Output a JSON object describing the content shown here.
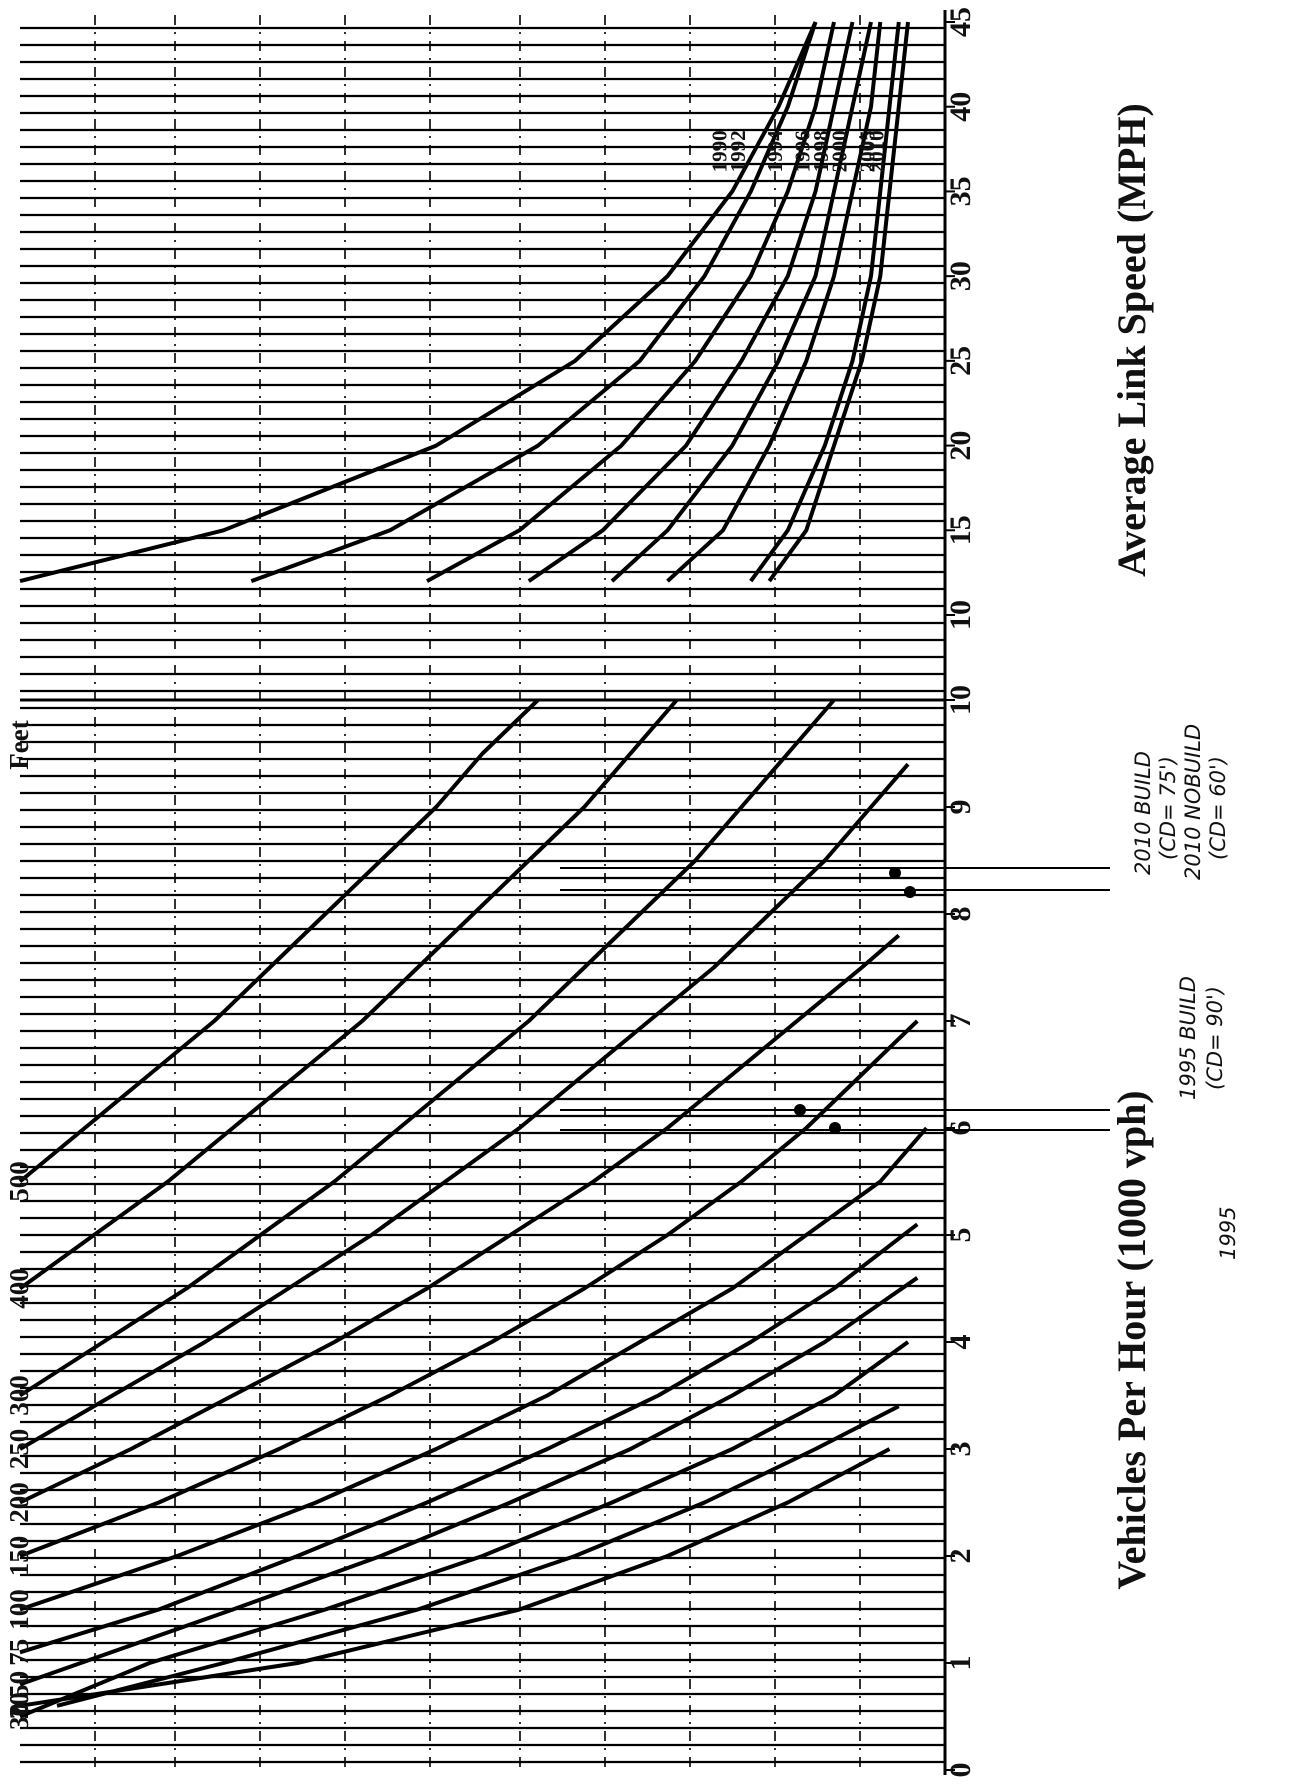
{
  "chart_data": [
    {
      "type": "line",
      "title": "",
      "xlabel": "Vehicles Per Hour (1000 vph)",
      "ylabel": "",
      "xlim": [
        0,
        10
      ],
      "x_ticks": [
        "0",
        "1",
        "2",
        "3",
        "4",
        "5",
        "6",
        "7",
        "8",
        "9",
        "10"
      ],
      "series_label_header": "Feet",
      "series": [
        {
          "name": "10",
          "x": [
            0.6,
            1.0,
            1.5,
            2.0,
            2.5,
            3.0
          ],
          "y": [
            1.0,
            0.7,
            0.46,
            0.3,
            0.17,
            0.06
          ]
        },
        {
          "name": "20",
          "x": [
            0.6,
            1.0,
            1.5,
            2.0,
            2.5,
            3.0,
            3.4
          ],
          "y": [
            0.96,
            0.78,
            0.57,
            0.4,
            0.26,
            0.14,
            0.05
          ]
        },
        {
          "name": "30",
          "x": [
            0.5,
            1.0,
            1.5,
            2.0,
            2.5,
            3.0,
            3.5,
            4.0
          ],
          "y": [
            1.0,
            0.86,
            0.67,
            0.5,
            0.36,
            0.23,
            0.12,
            0.04
          ]
        },
        {
          "name": "50",
          "x": [
            0.8,
            1.5,
            2.0,
            2.5,
            3.0,
            3.5,
            4.0,
            4.6
          ],
          "y": [
            1.0,
            0.77,
            0.61,
            0.47,
            0.34,
            0.23,
            0.13,
            0.03
          ]
        },
        {
          "name": "75",
          "x": [
            1.1,
            1.5,
            2.0,
            2.5,
            3.0,
            3.5,
            4.0,
            4.5,
            5.1
          ],
          "y": [
            1.0,
            0.85,
            0.7,
            0.56,
            0.43,
            0.31,
            0.21,
            0.12,
            0.03
          ]
        },
        {
          "name": "100",
          "x": [
            1.5,
            2.0,
            2.5,
            3.0,
            3.5,
            4.0,
            4.5,
            5.0,
            5.5,
            6.0
          ],
          "y": [
            1.0,
            0.83,
            0.68,
            0.55,
            0.43,
            0.33,
            0.23,
            0.15,
            0.07,
            0.02
          ]
        },
        {
          "name": "150",
          "x": [
            2.0,
            2.5,
            3.0,
            3.5,
            4.0,
            4.5,
            5.0,
            5.5,
            6.0,
            6.5,
            7.0
          ],
          "y": [
            1.0,
            0.85,
            0.72,
            0.6,
            0.49,
            0.39,
            0.3,
            0.22,
            0.15,
            0.09,
            0.03
          ]
        },
        {
          "name": "200",
          "x": [
            2.5,
            3.0,
            3.5,
            4.0,
            4.5,
            5.0,
            5.5,
            6.0,
            6.5,
            7.0,
            7.5,
            7.8
          ],
          "y": [
            1.0,
            0.88,
            0.77,
            0.66,
            0.56,
            0.47,
            0.38,
            0.3,
            0.23,
            0.16,
            0.09,
            0.05
          ]
        },
        {
          "name": "250",
          "x": [
            3.0,
            3.5,
            4.0,
            4.5,
            5.0,
            5.5,
            6.0,
            6.5,
            7.0,
            7.5,
            8.0,
            8.5,
            9.0,
            9.4
          ],
          "y": [
            1.0,
            0.9,
            0.8,
            0.71,
            0.62,
            0.54,
            0.46,
            0.39,
            0.32,
            0.25,
            0.19,
            0.13,
            0.08,
            0.04
          ]
        },
        {
          "name": "300",
          "x": [
            3.5,
            4.0,
            4.5,
            5.0,
            5.5,
            6.0,
            6.5,
            7.0,
            7.5,
            8.0,
            8.5,
            9.0,
            9.5,
            10.0
          ],
          "y": [
            1.0,
            0.91,
            0.82,
            0.74,
            0.66,
            0.59,
            0.52,
            0.45,
            0.39,
            0.33,
            0.27,
            0.22,
            0.17,
            0.12
          ]
        },
        {
          "name": "400",
          "x": [
            4.5,
            5.0,
            5.5,
            6.0,
            6.5,
            7.0,
            7.5,
            8.0,
            8.5,
            9.0,
            9.5,
            10.0
          ],
          "y": [
            1.0,
            0.92,
            0.84,
            0.77,
            0.7,
            0.63,
            0.57,
            0.51,
            0.45,
            0.39,
            0.34,
            0.29
          ]
        },
        {
          "name": "500",
          "x": [
            5.5,
            6.0,
            6.5,
            7.0,
            7.5,
            8.0,
            8.5,
            9.0,
            9.5,
            10.0
          ],
          "y": [
            1.0,
            0.93,
            0.86,
            0.79,
            0.73,
            0.67,
            0.61,
            0.55,
            0.5,
            0.44
          ]
        }
      ],
      "series_label_order": [
        "10",
        "20",
        "30",
        "50",
        "75",
        "100",
        "150",
        "200",
        "250",
        "300",
        "400",
        "500"
      ],
      "series_label_text": [
        "10",
        "20",
        "30",
        "50",
        "75",
        "100",
        "150",
        "200",
        "250",
        "300",
        "400",
        "500"
      ],
      "note": "1995"
    },
    {
      "type": "line",
      "title": "",
      "xlabel": "Average Link Speed (MPH)",
      "ylabel": "",
      "xlim": [
        10,
        45
      ],
      "x_ticks": [
        "10",
        "15",
        "20",
        "25",
        "30",
        "35",
        "40",
        "45"
      ],
      "series": [
        {
          "name": "1990",
          "x": [
            12,
            15,
            20,
            25,
            30,
            35,
            40,
            45
          ],
          "y": [
            1.0,
            0.78,
            0.55,
            0.4,
            0.3,
            0.23,
            0.18,
            0.14
          ]
        },
        {
          "name": "1992",
          "x": [
            12,
            15,
            20,
            25,
            30,
            35,
            40,
            45
          ],
          "y": [
            0.75,
            0.6,
            0.44,
            0.33,
            0.26,
            0.21,
            0.17,
            0.14
          ]
        },
        {
          "name": "1994",
          "x": [
            12,
            15,
            20,
            25,
            30,
            35,
            40,
            45
          ],
          "y": [
            0.56,
            0.46,
            0.35,
            0.27,
            0.21,
            0.17,
            0.14,
            0.12
          ]
        },
        {
          "name": "1996",
          "x": [
            12,
            15,
            20,
            25,
            30,
            35,
            40,
            45
          ],
          "y": [
            0.45,
            0.37,
            0.28,
            0.22,
            0.17,
            0.14,
            0.12,
            0.1
          ]
        },
        {
          "name": "1998",
          "x": [
            12,
            15,
            20,
            25,
            30,
            35,
            40,
            45
          ],
          "y": [
            0.36,
            0.3,
            0.23,
            0.18,
            0.14,
            0.12,
            0.1,
            0.08
          ]
        },
        {
          "name": "2000",
          "x": [
            12,
            15,
            20,
            25,
            30,
            35,
            40,
            45
          ],
          "y": [
            0.3,
            0.24,
            0.19,
            0.15,
            0.12,
            0.1,
            0.08,
            0.07
          ]
        },
        {
          "name": "2005",
          "x": [
            12,
            15,
            20,
            25,
            30,
            35,
            40,
            45
          ],
          "y": [
            0.21,
            0.17,
            0.13,
            0.1,
            0.08,
            0.07,
            0.06,
            0.05
          ]
        },
        {
          "name": "2010",
          "x": [
            12,
            15,
            20,
            25,
            30,
            35,
            40,
            45
          ],
          "y": [
            0.19,
            0.15,
            0.12,
            0.09,
            0.07,
            0.06,
            0.05,
            0.04
          ]
        }
      ]
    }
  ],
  "annotations": [
    {
      "id": "a1",
      "text": "2010 BUILD"
    },
    {
      "id": "a2",
      "text": "(CD= 75')"
    },
    {
      "id": "a3",
      "text": "2010 NOBUILD"
    },
    {
      "id": "a4",
      "text": "(CD= 60')"
    },
    {
      "id": "a5",
      "text": "1995 BUILD"
    },
    {
      "id": "a6",
      "text": "(CD= 90')"
    },
    {
      "id": "a7",
      "text": "1995"
    }
  ]
}
